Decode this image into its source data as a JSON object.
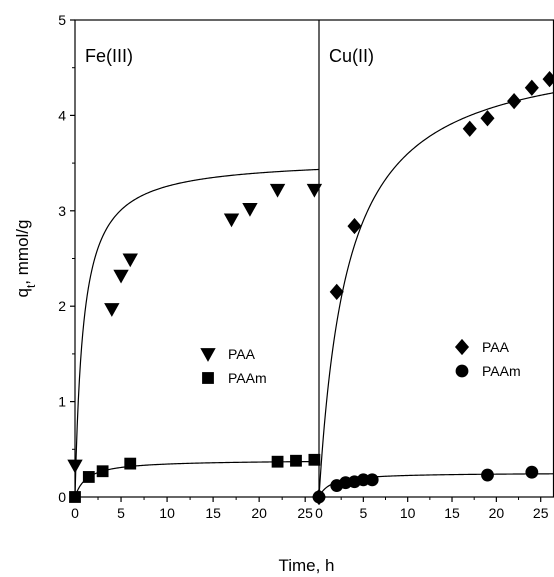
{
  "chart_data": {
    "type": "scatter",
    "xlabel": "Time, h",
    "ylabel": {
      "main": "q",
      "sub": "t",
      "rest": ", mmol/g"
    },
    "ylim": [
      0,
      5
    ],
    "yticks": [
      "0",
      "1",
      "2",
      "3",
      "4",
      "5"
    ],
    "grid": false,
    "panels": [
      {
        "label": "Fe(III)",
        "xlim": [
          0,
          26.5
        ],
        "xticks": [
          "0",
          "5",
          "10",
          "15",
          "20",
          "25"
        ],
        "legend_position": "center-right",
        "series": [
          {
            "name": "PAA",
            "marker": "triangle-down",
            "x": [
              0,
              4,
              5,
              6,
              17,
              19,
              22,
              26
            ],
            "y": [
              0.33,
              1.97,
              2.32,
              2.49,
              2.91,
              3.02,
              3.22,
              3.22
            ],
            "fit": {
              "qe": 3.55,
              "k": 0.9
            }
          },
          {
            "name": "PAAm",
            "marker": "square",
            "x": [
              0,
              1.5,
              3,
              6,
              22,
              24,
              26
            ],
            "y": [
              0.0,
              0.21,
              0.27,
              0.35,
              0.37,
              0.38,
              0.39
            ],
            "fit": {
              "qe": 0.39,
              "k": 1.3
            }
          }
        ]
      },
      {
        "label": "Cu(II)",
        "xlim": [
          0,
          26.5
        ],
        "xticks": [
          "0",
          "5",
          "10",
          "15",
          "20",
          "25"
        ],
        "legend_position": "center-right",
        "series": [
          {
            "name": "PAA",
            "marker": "diamond",
            "x": [
              0,
              2,
              4,
              17,
              19,
              22,
              24,
              26
            ],
            "y": [
              0.0,
              2.15,
              2.84,
              3.86,
              3.97,
              4.15,
              4.29,
              4.38
            ],
            "fit": {
              "qe": 4.75,
              "k": 3.2
            }
          },
          {
            "name": "PAAm",
            "marker": "circle",
            "x": [
              0,
              2,
              3,
              4,
              5,
              6,
              19,
              24
            ],
            "y": [
              0.0,
              0.12,
              0.15,
              0.16,
              0.18,
              0.18,
              0.23,
              0.26
            ],
            "fit": {
              "qe": 0.255,
              "k": 1.3
            }
          }
        ]
      }
    ]
  }
}
